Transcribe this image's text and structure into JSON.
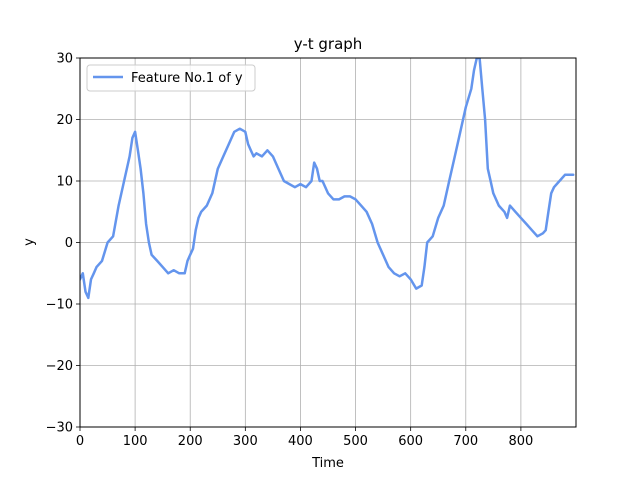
{
  "chart_data": {
    "type": "line",
    "title": "y-t graph",
    "xlabel": "Time",
    "ylabel": "y",
    "xlim": [
      0,
      900
    ],
    "ylim": [
      -30,
      30
    ],
    "xticks": [
      0,
      100,
      200,
      300,
      400,
      500,
      600,
      700,
      800
    ],
    "yticks": [
      -30,
      -20,
      -10,
      0,
      10,
      20,
      30
    ],
    "grid": true,
    "legend_position": "top-left",
    "series": [
      {
        "name": "Feature No.1 of y",
        "color": "#6495ED",
        "x": [
          0,
          5,
          10,
          15,
          20,
          25,
          30,
          40,
          50,
          60,
          70,
          80,
          90,
          95,
          100,
          105,
          110,
          115,
          120,
          125,
          130,
          140,
          150,
          160,
          170,
          180,
          190,
          195,
          200,
          205,
          210,
          215,
          220,
          230,
          240,
          250,
          260,
          270,
          280,
          290,
          300,
          305,
          310,
          315,
          320,
          330,
          340,
          350,
          360,
          370,
          380,
          390,
          400,
          410,
          420,
          425,
          430,
          435,
          440,
          450,
          460,
          470,
          480,
          490,
          500,
          510,
          520,
          530,
          540,
          550,
          560,
          570,
          580,
          590,
          600,
          610,
          620,
          625,
          630,
          640,
          650,
          660,
          670,
          680,
          690,
          700,
          710,
          715,
          720,
          725,
          730,
          735,
          740,
          745,
          750,
          760,
          770,
          775,
          780,
          790,
          800,
          810,
          820,
          830,
          840,
          845,
          850,
          855,
          860,
          870,
          880,
          890,
          895
        ],
        "y": [
          -6,
          -5,
          -8,
          -9,
          -6,
          -5,
          -4,
          -3,
          0,
          1,
          6,
          10,
          14,
          17,
          18,
          15,
          12,
          8,
          3,
          0,
          -2,
          -3,
          -4,
          -5,
          -4.5,
          -5,
          -5,
          -3,
          -2,
          -1,
          2,
          4,
          5,
          6,
          8,
          12,
          14,
          16,
          18,
          18.5,
          18,
          16,
          15,
          14,
          14.5,
          14,
          15,
          14,
          12,
          10,
          9.5,
          9,
          9.5,
          9,
          10,
          13,
          12,
          10,
          10,
          8,
          7,
          7,
          7.5,
          7.5,
          7,
          6,
          5,
          3,
          0,
          -2,
          -4,
          -5,
          -5.5,
          -5,
          -6,
          -7.5,
          -7,
          -4,
          0,
          1,
          4,
          6,
          10,
          14,
          18,
          22,
          25,
          28,
          30,
          30,
          25,
          20,
          12,
          10,
          8,
          6,
          5,
          4,
          6,
          5,
          4,
          3,
          2,
          1,
          1.5,
          2,
          5,
          8,
          9,
          10,
          11,
          11,
          11
        ]
      }
    ]
  }
}
